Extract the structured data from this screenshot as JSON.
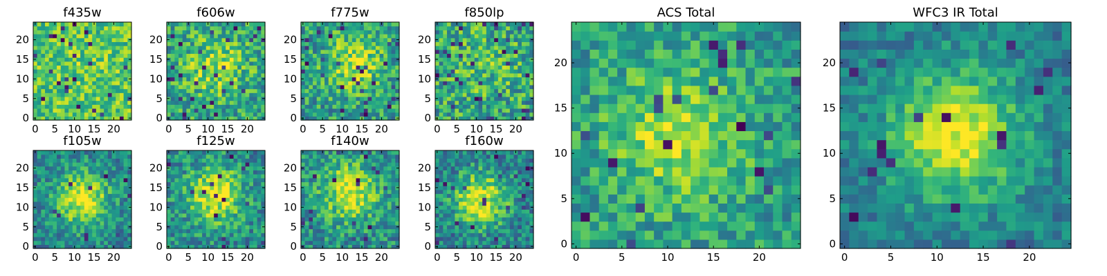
{
  "colormap": "viridis",
  "colors": {
    "viridis_stops": [
      "#440154",
      "#482878",
      "#3e4989",
      "#31688e",
      "#26828e",
      "#1f9e89",
      "#35b779",
      "#6ece58",
      "#b5de2b",
      "#fde725"
    ],
    "frame": "#000000",
    "background": "#ffffff"
  },
  "chart_data": [
    {
      "id": "f435w",
      "type": "heatmap",
      "title": "f435w",
      "grid_size": 25,
      "extent": [
        0,
        25
      ],
      "xticks": [
        0,
        5,
        10,
        15,
        20
      ],
      "yticks": [
        0,
        5,
        10,
        15,
        20
      ],
      "source_center": [
        12,
        12
      ],
      "source_sigma": 6,
      "source_strength": 0.05,
      "background_level": 0.72,
      "noise": 0.22,
      "bad_pixel_fraction": 0.03,
      "value_range": [
        0,
        1
      ],
      "seed": 11
    },
    {
      "id": "f606w",
      "type": "heatmap",
      "title": "f606w",
      "grid_size": 25,
      "extent": [
        0,
        25
      ],
      "xticks": [
        0,
        5,
        10,
        15,
        20
      ],
      "yticks": [
        0,
        5,
        10,
        15,
        20
      ],
      "source_center": [
        12,
        13
      ],
      "source_sigma": 5,
      "source_strength": 0.3,
      "background_level": 0.58,
      "noise": 0.25,
      "bad_pixel_fraction": 0.04,
      "value_range": [
        0,
        1
      ],
      "seed": 23
    },
    {
      "id": "f775w",
      "type": "heatmap",
      "title": "f775w",
      "grid_size": 25,
      "extent": [
        0,
        25
      ],
      "xticks": [
        0,
        5,
        10,
        15,
        20
      ],
      "yticks": [
        0,
        5,
        10,
        15,
        20
      ],
      "source_center": [
        13,
        14
      ],
      "source_sigma": 5,
      "source_strength": 0.35,
      "background_level": 0.55,
      "noise": 0.25,
      "bad_pixel_fraction": 0.04,
      "value_range": [
        0,
        1
      ],
      "seed": 37
    },
    {
      "id": "f850lp",
      "type": "heatmap",
      "title": "f850lp",
      "grid_size": 25,
      "extent": [
        0,
        25
      ],
      "xticks": [
        0,
        5,
        10,
        15,
        20
      ],
      "yticks": [
        0,
        5,
        10,
        15,
        20
      ],
      "source_center": [
        12,
        14
      ],
      "source_sigma": 6,
      "source_strength": 0.12,
      "background_level": 0.58,
      "noise": 0.28,
      "bad_pixel_fraction": 0.05,
      "value_range": [
        0,
        1
      ],
      "seed": 41
    },
    {
      "id": "f105w",
      "type": "heatmap",
      "title": "f105w",
      "grid_size": 25,
      "extent": [
        0,
        25
      ],
      "xticks": [
        0,
        5,
        10,
        15,
        20
      ],
      "yticks": [
        0,
        5,
        10,
        15,
        20
      ],
      "source_center": [
        12,
        12
      ],
      "source_sigma": 5,
      "source_strength": 0.5,
      "background_level": 0.45,
      "noise": 0.2,
      "bad_pixel_fraction": 0.02,
      "value_range": [
        0,
        1
      ],
      "seed": 53
    },
    {
      "id": "f125w",
      "type": "heatmap",
      "title": "f125w",
      "grid_size": 25,
      "extent": [
        0,
        25
      ],
      "xticks": [
        0,
        5,
        10,
        15,
        20
      ],
      "yticks": [
        0,
        5,
        10,
        15,
        20
      ],
      "source_center": [
        12,
        13
      ],
      "source_sigma": 5,
      "source_strength": 0.5,
      "background_level": 0.48,
      "noise": 0.22,
      "bad_pixel_fraction": 0.03,
      "value_range": [
        0,
        1
      ],
      "seed": 67
    },
    {
      "id": "f140w",
      "type": "heatmap",
      "title": "f140w",
      "grid_size": 25,
      "extent": [
        0,
        25
      ],
      "xticks": [
        0,
        5,
        10,
        15,
        20
      ],
      "yticks": [
        0,
        5,
        10,
        15,
        20
      ],
      "source_center": [
        12,
        14
      ],
      "source_sigma": 5,
      "source_strength": 0.45,
      "background_level": 0.5,
      "noise": 0.22,
      "bad_pixel_fraction": 0.03,
      "value_range": [
        0,
        1
      ],
      "seed": 79
    },
    {
      "id": "f160w",
      "type": "heatmap",
      "title": "f160w",
      "grid_size": 25,
      "extent": [
        0,
        25
      ],
      "xticks": [
        0,
        5,
        10,
        15,
        20
      ],
      "yticks": [
        0,
        5,
        10,
        15,
        20
      ],
      "source_center": [
        11,
        12
      ],
      "source_sigma": 5,
      "source_strength": 0.55,
      "background_level": 0.42,
      "noise": 0.22,
      "bad_pixel_fraction": 0.03,
      "value_range": [
        0,
        1
      ],
      "seed": 83
    },
    {
      "id": "acs-total",
      "type": "heatmap",
      "title": "ACS Total",
      "grid_size": 25,
      "extent": [
        0,
        25
      ],
      "xticks": [
        0,
        5,
        10,
        15,
        20
      ],
      "yticks": [
        0,
        5,
        10,
        15,
        20
      ],
      "source_center": [
        11,
        12
      ],
      "source_sigma": 5,
      "source_strength": 0.35,
      "background_level": 0.55,
      "noise": 0.2,
      "bad_pixel_fraction": 0.03,
      "value_range": [
        0,
        1
      ],
      "seed": 97
    },
    {
      "id": "wfc3-ir-total",
      "type": "heatmap",
      "title": "WFC3 IR Total",
      "grid_size": 25,
      "extent": [
        0,
        25
      ],
      "xticks": [
        0,
        5,
        10,
        15,
        20
      ],
      "yticks": [
        0,
        5,
        10,
        15,
        20
      ],
      "source_center": [
        12,
        12
      ],
      "source_sigma": 5,
      "source_strength": 0.55,
      "background_level": 0.42,
      "noise": 0.15,
      "bad_pixel_fraction": 0.03,
      "value_range": [
        0,
        1
      ],
      "seed": 101
    }
  ]
}
